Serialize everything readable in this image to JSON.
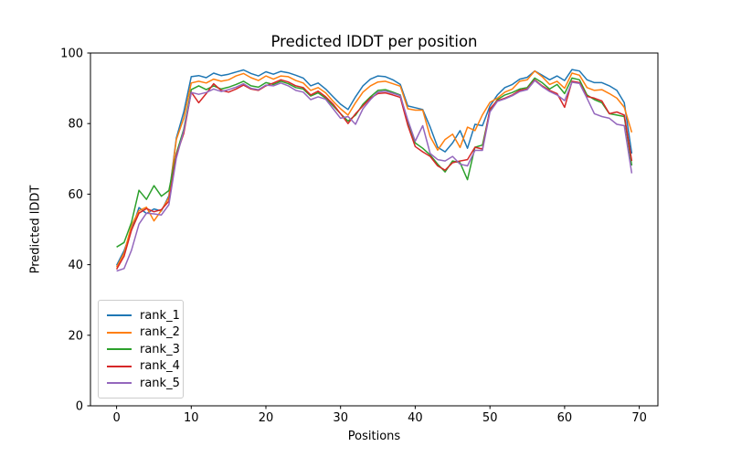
{
  "chart_data": {
    "type": "line",
    "title": "Predicted lDDT per position",
    "xlabel": "Positions",
    "ylabel": "Predicted lDDT",
    "xlim": [
      -3.5,
      72.5
    ],
    "ylim": [
      0,
      100
    ],
    "xticks": [
      0,
      10,
      20,
      30,
      40,
      50,
      60,
      70
    ],
    "yticks": [
      0,
      20,
      40,
      60,
      80,
      100
    ],
    "grid": false,
    "legend_position": "lower left",
    "x": [
      0,
      1,
      2,
      3,
      4,
      5,
      6,
      7,
      8,
      9,
      10,
      11,
      12,
      13,
      14,
      15,
      16,
      17,
      18,
      19,
      20,
      21,
      22,
      23,
      24,
      25,
      26,
      27,
      28,
      29,
      30,
      31,
      32,
      33,
      34,
      35,
      36,
      37,
      38,
      39,
      40,
      41,
      42,
      43,
      44,
      45,
      46,
      47,
      48,
      49,
      50,
      51,
      52,
      53,
      54,
      55,
      56,
      57,
      58,
      59,
      60,
      61,
      62,
      63,
      64,
      65,
      66,
      67,
      68,
      69
    ],
    "series": [
      {
        "name": "rank_1",
        "color": "#1f77b4",
        "values": [
          39.8,
          44.0,
          49.8,
          56.2,
          54.5,
          55.8,
          55.2,
          59.5,
          75.9,
          83.3,
          93.3,
          93.6,
          93.0,
          94.3,
          93.6,
          94.0,
          94.6,
          95.2,
          94.2,
          93.5,
          94.7,
          94.0,
          94.8,
          94.4,
          93.7,
          92.9,
          90.7,
          91.5,
          89.8,
          87.6,
          85.5,
          84.0,
          87.6,
          90.7,
          92.6,
          93.5,
          93.3,
          92.4,
          91.1,
          85.0,
          84.5,
          84.0,
          79.0,
          73.3,
          72.0,
          74.5,
          78.0,
          73.0,
          79.8,
          79.4,
          85.0,
          88.1,
          90.2,
          91.1,
          92.6,
          93.1,
          94.9,
          93.7,
          92.4,
          93.5,
          92.2,
          95.3,
          94.9,
          92.4,
          91.6,
          91.6,
          90.7,
          89.4,
          85.9,
          71.5
        ]
      },
      {
        "name": "rank_2",
        "color": "#ff7f0e",
        "values": [
          39.3,
          43.3,
          51.1,
          55.3,
          56.3,
          52.4,
          55.4,
          59.0,
          75.5,
          81.5,
          91.5,
          92.0,
          91.5,
          92.6,
          92.0,
          92.4,
          93.5,
          94.2,
          93.0,
          92.2,
          93.5,
          92.6,
          93.5,
          93.3,
          92.2,
          91.5,
          89.4,
          90.2,
          88.7,
          86.3,
          84.2,
          82.4,
          85.9,
          88.9,
          90.7,
          91.8,
          92.0,
          91.3,
          90.6,
          84.2,
          83.8,
          83.8,
          76.3,
          72.5,
          75.5,
          77.0,
          73.2,
          79.0,
          78.0,
          82.5,
          86.0,
          87.2,
          88.9,
          89.8,
          92.0,
          92.4,
          94.9,
          93.3,
          91.1,
          92.0,
          90.0,
          94.3,
          93.7,
          90.2,
          89.4,
          89.6,
          88.5,
          87.2,
          84.6,
          77.5
        ]
      },
      {
        "name": "rank_3",
        "color": "#2ca02c",
        "values": [
          45.0,
          46.3,
          52.0,
          61.1,
          58.5,
          62.4,
          59.4,
          61.0,
          71.5,
          78.4,
          89.6,
          90.7,
          89.6,
          90.7,
          89.8,
          90.3,
          91.1,
          92.0,
          90.7,
          90.3,
          91.6,
          91.1,
          92.0,
          91.3,
          90.2,
          89.8,
          87.8,
          88.7,
          87.2,
          85.0,
          82.8,
          80.7,
          82.4,
          85.5,
          87.6,
          89.4,
          89.6,
          88.9,
          88.1,
          80.0,
          74.5,
          73.0,
          71.1,
          68.5,
          66.3,
          69.4,
          68.9,
          64.1,
          73.3,
          73.9,
          83.7,
          86.8,
          88.1,
          88.8,
          89.8,
          90.2,
          92.9,
          91.6,
          89.8,
          91.1,
          88.5,
          92.9,
          92.4,
          88.1,
          86.8,
          85.9,
          82.8,
          82.4,
          82.0,
          68.1
        ]
      },
      {
        "name": "rank_4",
        "color": "#d62728",
        "values": [
          38.7,
          42.4,
          49.8,
          54.6,
          55.9,
          55.0,
          55.6,
          58.0,
          71.1,
          77.2,
          88.9,
          85.9,
          88.5,
          91.3,
          89.4,
          88.9,
          89.8,
          90.9,
          89.8,
          89.4,
          90.7,
          91.5,
          92.4,
          91.8,
          90.7,
          90.2,
          88.1,
          89.2,
          87.6,
          85.5,
          82.8,
          80.0,
          82.8,
          85.0,
          87.2,
          88.5,
          88.7,
          88.1,
          87.4,
          79.5,
          73.5,
          72.0,
          70.7,
          68.0,
          66.8,
          68.9,
          69.4,
          69.8,
          73.3,
          72.8,
          84.2,
          86.5,
          87.2,
          88.1,
          89.4,
          89.8,
          92.4,
          90.7,
          89.4,
          88.5,
          84.6,
          92.0,
          91.6,
          87.7,
          87.2,
          86.4,
          82.8,
          83.3,
          82.4,
          69.4
        ]
      },
      {
        "name": "rank_5",
        "color": "#9467bd",
        "values": [
          38.2,
          38.9,
          44.1,
          51.5,
          54.6,
          54.4,
          54.1,
          57.0,
          70.2,
          78.0,
          88.8,
          88.3,
          88.8,
          89.8,
          89.1,
          89.6,
          90.3,
          91.3,
          90.0,
          89.6,
          90.9,
          90.7,
          91.5,
          90.7,
          89.4,
          88.9,
          86.8,
          87.6,
          86.9,
          84.2,
          81.5,
          82.0,
          79.8,
          84.2,
          86.8,
          88.9,
          89.2,
          88.6,
          87.9,
          81.0,
          75.0,
          79.4,
          71.5,
          69.8,
          69.4,
          70.7,
          68.5,
          68.0,
          72.4,
          72.4,
          83.3,
          86.3,
          87.0,
          87.9,
          89.1,
          89.6,
          92.2,
          90.5,
          89.1,
          88.1,
          86.5,
          91.7,
          91.4,
          87.2,
          82.8,
          82.0,
          81.5,
          79.8,
          79.4,
          65.9
        ]
      }
    ]
  }
}
